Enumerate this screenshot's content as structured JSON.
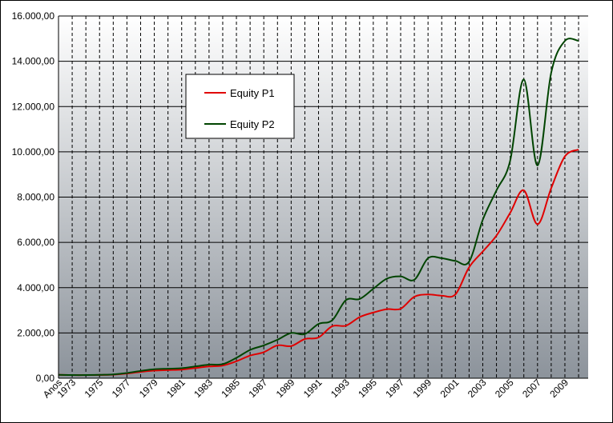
{
  "chart_data": {
    "type": "line",
    "xlabel": "",
    "ylabel": "",
    "ylim": [
      0,
      16000
    ],
    "y_ticks": [
      "0,00",
      "2.000,00",
      "4.000,00",
      "6.000,00",
      "8.000,00",
      "10.000,00",
      "12.000,00",
      "14.000,00",
      "16.000,00"
    ],
    "x_tick_labels": [
      "Anos",
      "1973",
      "1975",
      "1977",
      "1979",
      "1981",
      "1983",
      "1985",
      "1987",
      "1989",
      "1991",
      "1993",
      "1995",
      "1997",
      "1999",
      "2001",
      "2003",
      "2005",
      "2007",
      "2009"
    ],
    "x": [
      1972,
      1973,
      1974,
      1975,
      1976,
      1977,
      1978,
      1979,
      1980,
      1981,
      1982,
      1983,
      1984,
      1985,
      1986,
      1987,
      1988,
      1989,
      1990,
      1991,
      1992,
      1993,
      1994,
      1995,
      1996,
      1997,
      1998,
      1999,
      2000,
      2001,
      2002,
      2003,
      2004,
      2005,
      2006,
      2007,
      2008,
      2009,
      2010
    ],
    "series": [
      {
        "name": "Equity P1",
        "color": "#e00000",
        "values": [
          150,
          140,
          140,
          145,
          160,
          210,
          280,
          340,
          360,
          380,
          450,
          520,
          560,
          750,
          1000,
          1150,
          1450,
          1420,
          1730,
          1800,
          2300,
          2320,
          2700,
          2900,
          3050,
          3070,
          3600,
          3700,
          3650,
          3700,
          4900,
          5600,
          6300,
          7300,
          8300,
          6800,
          8400,
          9800,
          10100
        ]
      },
      {
        "name": "Equity P2",
        "color": "#004400",
        "values": [
          150,
          140,
          140,
          150,
          170,
          230,
          320,
          400,
          420,
          440,
          520,
          600,
          620,
          900,
          1250,
          1450,
          1700,
          2000,
          1950,
          2400,
          2560,
          3450,
          3500,
          3950,
          4400,
          4500,
          4350,
          5300,
          5300,
          5180,
          5150,
          7000,
          8300,
          9600,
          13200,
          9400,
          13500,
          14900,
          14900
        ]
      }
    ],
    "legend_position": "top-left",
    "grid": true
  }
}
